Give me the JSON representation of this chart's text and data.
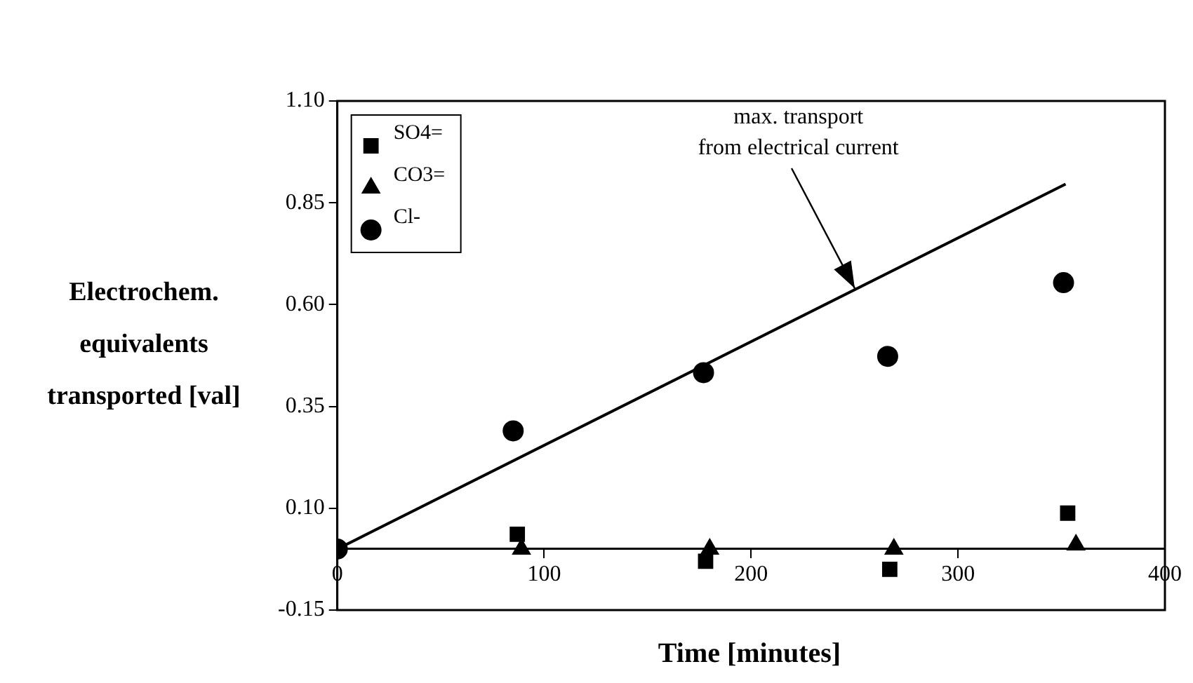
{
  "chart_data": {
    "type": "scatter",
    "xlabel": "Time [minutes]",
    "ylabel": "Electrochem. equivalents transported [val]",
    "xlim": [
      0,
      400
    ],
    "xticks": [
      0,
      100,
      200,
      300,
      400
    ],
    "ylim": [
      -0.15,
      1.1
    ],
    "yticks": [
      {
        "value": -0.15,
        "label": "-0.15"
      },
      {
        "value": 0.1,
        "label": "0.10"
      },
      {
        "value": 0.35,
        "label": "0.35"
      },
      {
        "value": 0.6,
        "label": "0.60"
      },
      {
        "value": 0.85,
        "label": "0.85"
      },
      {
        "value": 1.1,
        "label": "1.10"
      }
    ],
    "grid": false,
    "legend": "top left",
    "series": [
      {
        "name": "SO4=",
        "type": "scatter",
        "marker": "square",
        "color": "#000000",
        "x": [
          87,
          178,
          267,
          353
        ],
        "values": [
          0.036,
          -0.03,
          -0.05,
          0.088
        ]
      },
      {
        "name": "CO3=",
        "type": "scatter",
        "marker": "triangle",
        "color": "#000000",
        "x": [
          89,
          180,
          269,
          357
        ],
        "values": [
          0,
          0,
          0,
          0.01
        ]
      },
      {
        "name": "Cl-",
        "type": "scatter",
        "marker": "circle",
        "color": "#000000",
        "x": [
          0,
          85,
          177,
          266,
          351
        ],
        "values": [
          0,
          0.29,
          0.433,
          0.473,
          0.654
        ]
      },
      {
        "type": "line",
        "marker": "none",
        "line_style": "solid",
        "color": "#000000",
        "x": [
          0,
          352
        ],
        "values": [
          0,
          0.896
        ]
      }
    ],
    "annotations": [
      {
        "text": "max. transport\nfrom electrical current",
        "x": 250,
        "y": 0.64
      }
    ]
  }
}
